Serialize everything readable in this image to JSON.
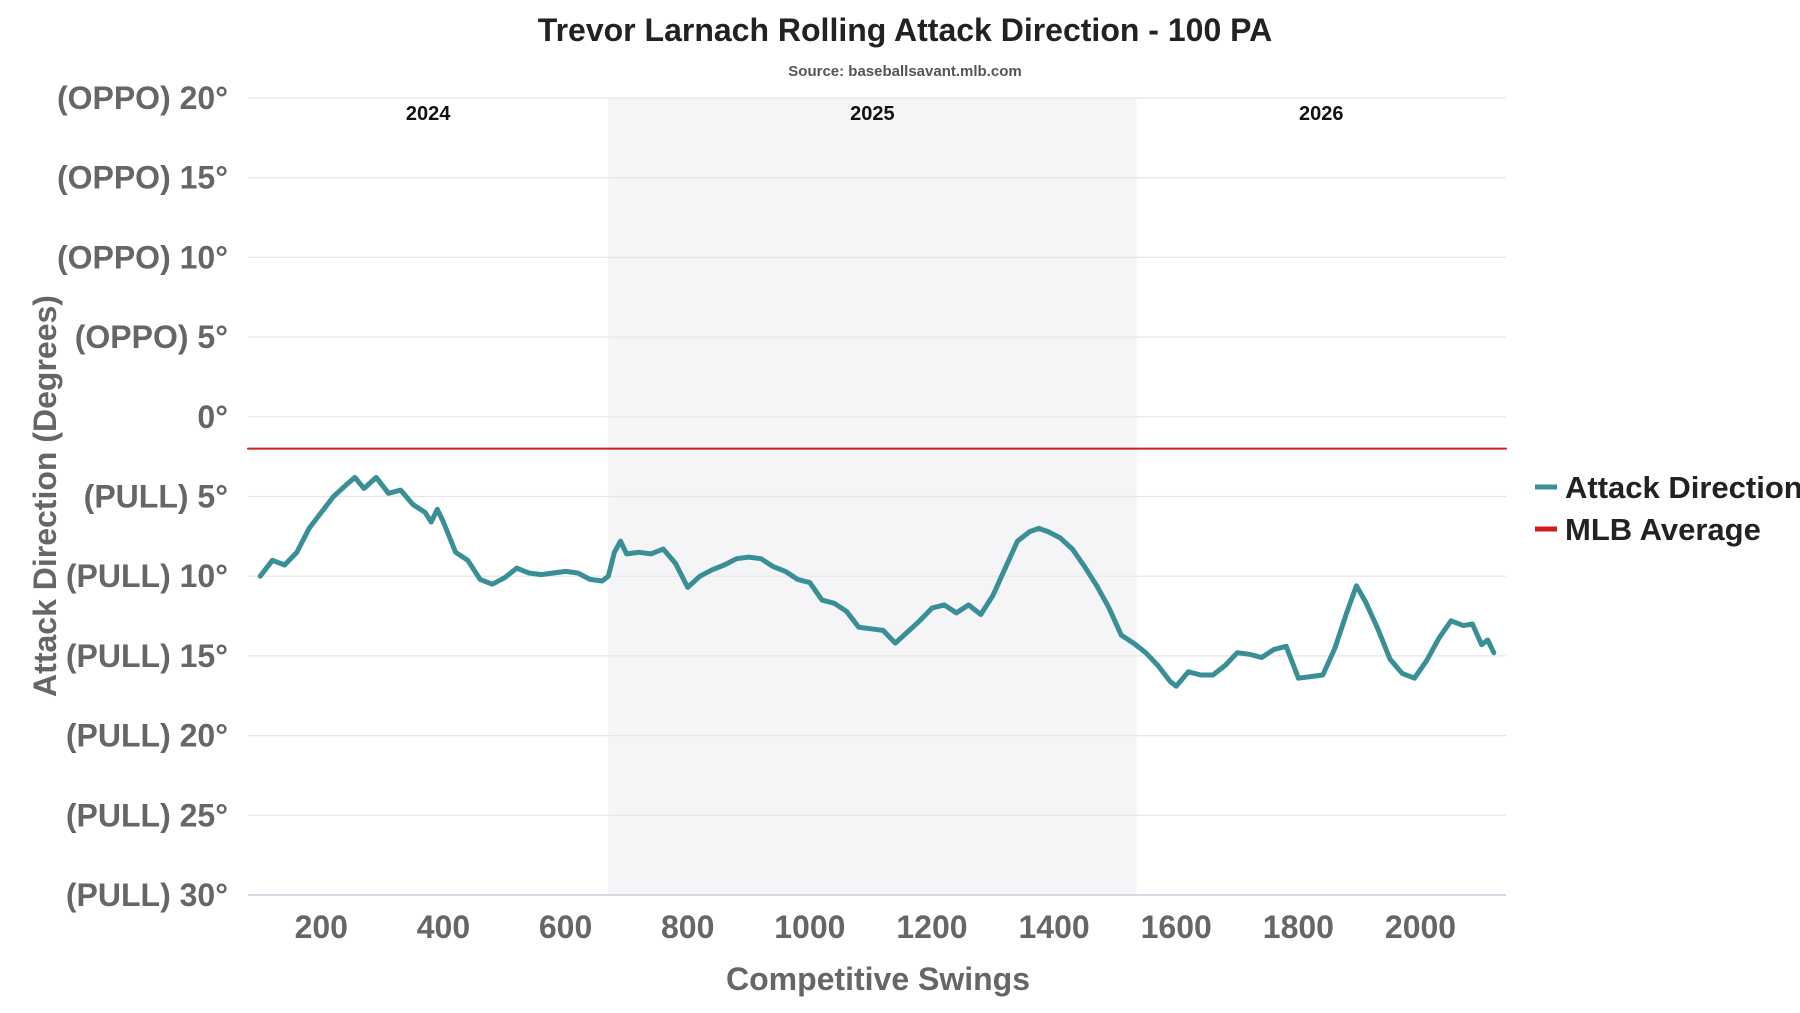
{
  "chart_data": {
    "type": "line",
    "title": "Trevor Larnach Rolling Attack Direction - 100 PA",
    "subtitle": "Source: baseballsavant.mlb.com",
    "xlabel": "Competitive Swings",
    "ylabel": "Attack Direction (Degrees)",
    "xlim": [
      80,
      2140
    ],
    "ylim": [
      -30,
      20
    ],
    "x_ticks": [
      200,
      400,
      600,
      800,
      1000,
      1200,
      1400,
      1600,
      1800,
      2000
    ],
    "x_tick_labels": [
      "200",
      "400",
      "600",
      "800",
      "1000",
      "1200",
      "1400",
      "1600",
      "1800",
      "2000"
    ],
    "y_ticks": [
      20,
      15,
      10,
      5,
      0,
      -5,
      -10,
      -15,
      -20,
      -25,
      -30
    ],
    "y_tick_labels": [
      "(OPPO) 20°",
      "(OPPO) 15°",
      "(OPPO) 10°",
      "(OPPO) 5°",
      "0°",
      "(PULL) 5°",
      "(PULL) 10°",
      "(PULL) 15°",
      "(PULL) 20°",
      "(PULL) 25°",
      "(PULL) 30°"
    ],
    "grid": true,
    "legend": "right",
    "seasons": [
      {
        "label": "2024",
        "x_start": 80,
        "x_end": 670,
        "shaded": false
      },
      {
        "label": "2025",
        "x_start": 670,
        "x_end": 1535,
        "shaded": true
      },
      {
        "label": "2026",
        "x_start": 1535,
        "x_end": 2140,
        "shaded": false
      }
    ],
    "series": [
      {
        "name": "Attack Direction",
        "color": "#3a8f96",
        "x": [
          100,
          120,
          140,
          160,
          180,
          200,
          220,
          240,
          255,
          270,
          290,
          310,
          330,
          350,
          370,
          380,
          390,
          400,
          420,
          440,
          460,
          480,
          500,
          520,
          540,
          560,
          580,
          600,
          620,
          640,
          660,
          670,
          680,
          690,
          700,
          720,
          740,
          760,
          780,
          800,
          820,
          840,
          860,
          880,
          900,
          920,
          940,
          960,
          980,
          1000,
          1020,
          1040,
          1060,
          1080,
          1100,
          1120,
          1140,
          1160,
          1180,
          1200,
          1220,
          1240,
          1260,
          1280,
          1300,
          1320,
          1340,
          1360,
          1375,
          1390,
          1410,
          1430,
          1450,
          1470,
          1490,
          1510,
          1530,
          1550,
          1570,
          1590,
          1600,
          1620,
          1640,
          1660,
          1680,
          1700,
          1720,
          1740,
          1760,
          1780,
          1800,
          1820,
          1840,
          1860,
          1880,
          1895,
          1910,
          1930,
          1950,
          1970,
          1990,
          2010,
          2030,
          2050,
          2070,
          2085,
          2100,
          2110,
          2120
        ],
        "values": [
          -10.0,
          -9.0,
          -9.3,
          -8.5,
          -7.0,
          -6.0,
          -5.0,
          -4.3,
          -3.8,
          -4.5,
          -3.8,
          -4.8,
          -4.6,
          -5.5,
          -6.0,
          -6.6,
          -5.8,
          -6.6,
          -8.5,
          -9.0,
          -10.2,
          -10.5,
          -10.1,
          -9.5,
          -9.8,
          -9.9,
          -9.8,
          -9.7,
          -9.8,
          -10.2,
          -10.3,
          -10.0,
          -8.5,
          -7.8,
          -8.6,
          -8.5,
          -8.6,
          -8.3,
          -9.2,
          -10.7,
          -10.0,
          -9.6,
          -9.3,
          -8.9,
          -8.8,
          -8.9,
          -9.4,
          -9.7,
          -10.2,
          -10.4,
          -11.5,
          -11.7,
          -12.2,
          -13.2,
          -13.3,
          -13.4,
          -14.2,
          -13.5,
          -12.8,
          -12.0,
          -11.8,
          -12.3,
          -11.8,
          -12.4,
          -11.2,
          -9.5,
          -7.8,
          -7.2,
          -7.0,
          -7.2,
          -7.6,
          -8.3,
          -9.4,
          -10.6,
          -12.0,
          -13.7,
          -14.2,
          -14.8,
          -15.6,
          -16.6,
          -16.9,
          -16.0,
          -16.2,
          -16.2,
          -15.6,
          -14.8,
          -14.9,
          -15.1,
          -14.6,
          -14.4,
          -16.4,
          -16.3,
          -16.2,
          -14.5,
          -12.2,
          -10.6,
          -11.6,
          -13.3,
          -15.2,
          -16.1,
          -16.4,
          -15.3,
          -13.9,
          -12.8,
          -13.1,
          -13.0,
          -14.3,
          -14.0,
          -14.8
        ]
      },
      {
        "name": "MLB Average",
        "color": "#cc1f1f",
        "x": [
          80,
          2140
        ],
        "values": [
          -2.0,
          -2.0
        ]
      }
    ]
  }
}
